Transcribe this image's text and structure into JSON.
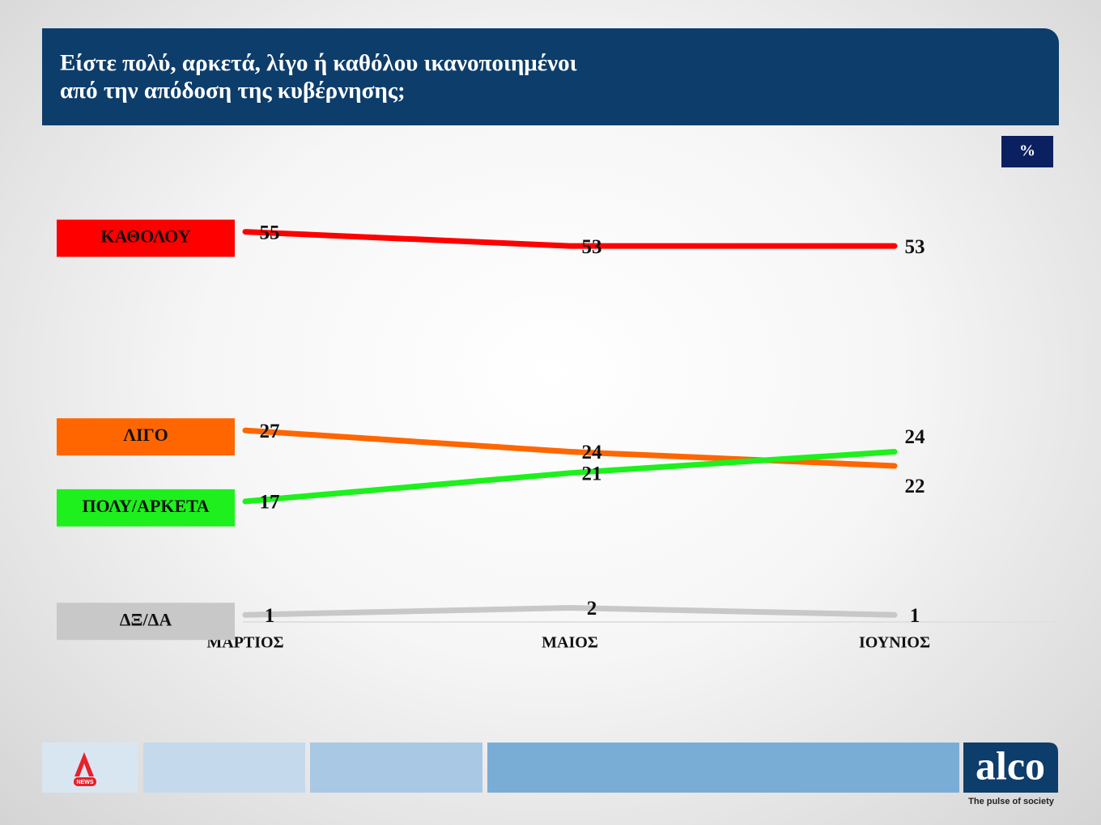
{
  "chart_data": {
    "type": "line",
    "title": "Είστε πολύ, αρκετά, λίγο ή καθόλου ικανοποιημένοι\nαπό την απόδοση της κυβέρνησης;",
    "unit_label": "%",
    "categories": [
      "ΜΑΡΤΙΟΣ",
      "ΜΑΙΟΣ",
      "ΙΟΥΝΙΟΣ"
    ],
    "series": [
      {
        "name": "ΚΑΘΟΛΟΥ",
        "color": "#ff0000",
        "values": [
          55,
          53,
          53
        ]
      },
      {
        "name": "ΛΙΓΟ",
        "color": "#ff6600",
        "values": [
          27,
          24,
          22
        ]
      },
      {
        "name": "ΠΟΛΥ/ΑΡΚΕΤΑ",
        "color": "#1ef01e",
        "values": [
          17,
          21,
          24
        ]
      },
      {
        "name": "ΔΞ/ΔΑ",
        "color": "#c8c8c8",
        "values": [
          1,
          2,
          1
        ]
      }
    ],
    "ylim": [
      0,
      70
    ]
  },
  "footer": {
    "news_logo": "NEWS",
    "brand": "alco",
    "tagline": "The pulse of society"
  }
}
